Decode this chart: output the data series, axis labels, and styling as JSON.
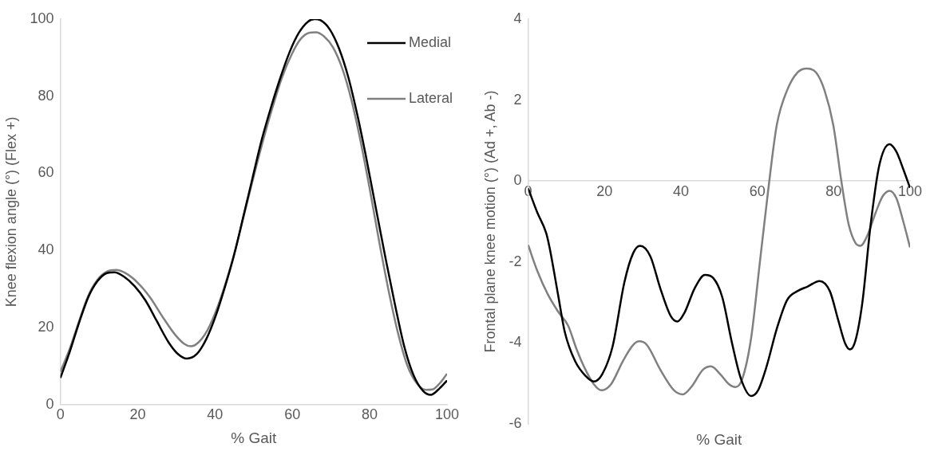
{
  "chart_data": [
    {
      "type": "line",
      "xlabel": "% Gait",
      "ylabel": "Knee flexion angle (°) (Flex +)",
      "xlim": [
        0,
        100
      ],
      "ylim": [
        0,
        100
      ],
      "xticks": [
        0,
        20,
        40,
        60,
        80,
        100
      ],
      "yticks": [
        0,
        20,
        40,
        60,
        80,
        100
      ],
      "grid": false,
      "legend": "top right",
      "marker": "none",
      "line_style": "solid",
      "series": [
        {
          "name": "Medial",
          "color": "#000000",
          "x": [
            0,
            2.4,
            4.8,
            7.2,
            9.6,
            12,
            14,
            16.4,
            19.2,
            22,
            24.8,
            28,
            30.4,
            32.7,
            35.3,
            37.7,
            40.1,
            42.5,
            44.9,
            47.3,
            49.7,
            52.1,
            54.5,
            56.9,
            59.3,
            61.7,
            64.1,
            65.7,
            67.3,
            69.7,
            72.1,
            74.5,
            76.9,
            79.3,
            81.7,
            84.1,
            86.5,
            88.9,
            91.3,
            93.8,
            95.8,
            97.8,
            100
          ],
          "values": [
            6.9,
            13.6,
            21.1,
            27.8,
            32,
            34.1,
            34.3,
            33.2,
            30.7,
            27,
            21.9,
            16.1,
            13.1,
            11.9,
            13.1,
            16.9,
            22.8,
            30.3,
            38.7,
            48.7,
            58.8,
            68.8,
            77.2,
            84.8,
            91.5,
            96.5,
            99.4,
            100,
            99.7,
            97.3,
            92.3,
            84.8,
            74.7,
            63,
            50.4,
            37.9,
            26.1,
            15.2,
            7.7,
            3.5,
            2.5,
            3.9,
            6.2
          ]
        },
        {
          "name": "Lateral",
          "color": "#808080",
          "x": [
            0,
            2.4,
            4.8,
            7.2,
            9.6,
            12,
            14.4,
            16.8,
            20,
            23.2,
            26.4,
            29.6,
            32.1,
            33.7,
            35.7,
            38.1,
            40.5,
            42.9,
            45.3,
            47.7,
            50.1,
            52.5,
            54.9,
            57.3,
            59.7,
            62.1,
            64.5,
            66.1,
            68.1,
            70.5,
            72.9,
            75.3,
            77.7,
            80.1,
            82.5,
            84.9,
            87.3,
            89.7,
            92.1,
            94.5,
            96.2,
            98.2,
            100
          ],
          "values": [
            8.5,
            14.4,
            21.5,
            28.2,
            32.4,
            34.5,
            34.9,
            34.1,
            31.6,
            27.8,
            22.8,
            18.2,
            15.7,
            15.1,
            16.1,
            19.4,
            24.9,
            32,
            40.4,
            50,
            59.6,
            68.8,
            77.2,
            84.8,
            90.6,
            94.8,
            96.5,
            96.6,
            95.6,
            92.7,
            87.2,
            78.9,
            68,
            55.4,
            42,
            29.5,
            18.6,
            10.2,
            5.6,
            3.8,
            3.9,
            5.6,
            8
          ]
        }
      ]
    },
    {
      "type": "line",
      "xlabel": "% Gait",
      "ylabel": "Frontal plane knee motion (°) (Ad +, Ab -)",
      "xlim": [
        0,
        100
      ],
      "ylim": [
        -6,
        4
      ],
      "xticks": [
        0,
        20,
        40,
        60,
        80,
        100
      ],
      "yticks": [
        -6,
        -4,
        -2,
        0,
        2,
        4
      ],
      "grid": false,
      "marker": "none",
      "line_style": "solid",
      "series": [
        {
          "color": "#000000",
          "x": [
            0,
            2.4,
            4.7,
            5.6,
            7.8,
            9.6,
            12.3,
            15,
            17.2,
            19.4,
            22.1,
            25.2,
            27.5,
            29.3,
            32,
            34.6,
            37.3,
            39.1,
            40.9,
            43.6,
            46.3,
            48.5,
            50.8,
            53.4,
            55.7,
            58.4,
            60.2,
            62.4,
            65.1,
            67.8,
            70.5,
            73.1,
            76.3,
            79,
            81.2,
            83,
            84.3,
            85.7,
            87.5,
            89.7,
            91.9,
            94.6,
            96.4,
            98.2,
            100
          ],
          "values": [
            -0.18,
            -0.78,
            -1.28,
            -1.64,
            -2.79,
            -3.73,
            -4.45,
            -4.81,
            -4.95,
            -4.77,
            -4.09,
            -2.5,
            -1.78,
            -1.6,
            -1.86,
            -2.65,
            -3.33,
            -3.47,
            -3.26,
            -2.65,
            -2.32,
            -2.4,
            -2.86,
            -4.01,
            -4.88,
            -5.31,
            -5.17,
            -4.59,
            -3.65,
            -2.94,
            -2.72,
            -2.61,
            -2.47,
            -2.72,
            -3.44,
            -4.01,
            -4.16,
            -3.94,
            -3.01,
            -1.06,
            0.37,
            0.91,
            0.73,
            0.3,
            -0.17
          ]
        },
        {
          "color": "#808080",
          "x": [
            0,
            2.4,
            5.1,
            7.8,
            10.5,
            12.7,
            15,
            17.2,
            19.2,
            21.7,
            24.8,
            27.5,
            29.1,
            31.1,
            34.6,
            38.2,
            40.5,
            42.7,
            45.8,
            47.9,
            50.3,
            52.6,
            54.3,
            56.1,
            58.4,
            60.6,
            62.8,
            65.1,
            67.8,
            70.5,
            73,
            75.4,
            77.6,
            79.9,
            82.1,
            83.9,
            85.7,
            87,
            88.8,
            91,
            92.8,
            94.6,
            96.4,
            98.2,
            100
          ],
          "values": [
            -1.58,
            -2.22,
            -2.79,
            -3.22,
            -3.58,
            -4.16,
            -4.66,
            -5.02,
            -5.17,
            -5.02,
            -4.45,
            -4.05,
            -3.96,
            -4.05,
            -4.66,
            -5.17,
            -5.27,
            -5.09,
            -4.66,
            -4.58,
            -4.77,
            -5.02,
            -5.09,
            -4.88,
            -3.87,
            -2.07,
            -0.27,
            1.38,
            2.24,
            2.68,
            2.78,
            2.68,
            2.24,
            1.38,
            -0.06,
            -1.06,
            -1.53,
            -1.6,
            -1.35,
            -0.78,
            -0.38,
            -0.24,
            -0.42,
            -0.99,
            -1.64
          ]
        }
      ]
    }
  ]
}
